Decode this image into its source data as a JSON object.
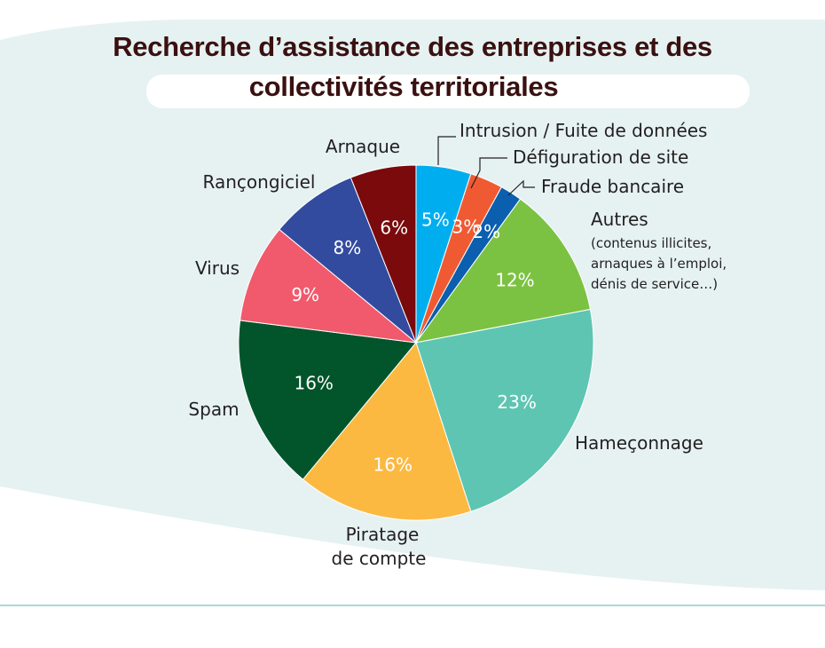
{
  "chart_data": {
    "type": "pie",
    "title_lines": [
      "Recherche d’assistance des entreprises et des",
      "collectivités territoriales"
    ],
    "slices": [
      {
        "label": "Intrusion / Fuite de données",
        "value": 5,
        "pct_label": "5%",
        "color": "#00aeef",
        "pct_color": "#ffffff"
      },
      {
        "label": "Défiguration de site",
        "value": 3,
        "pct_label": "3%",
        "color": "#f05a32",
        "pct_color": "#ffffff"
      },
      {
        "label": "Fraude bancaire",
        "value": 2,
        "pct_label": "2%",
        "color": "#0b5fae",
        "pct_color": "#ffffff"
      },
      {
        "label": "Autres",
        "sublabel_lines": [
          "(contenus illicites,",
          "arnaques à l’emploi,",
          "dénis de service…)"
        ],
        "value": 12,
        "pct_label": "12%",
        "color": "#7cc242",
        "pct_color": "#ffffff"
      },
      {
        "label": "Hameçonnage",
        "value": 23,
        "pct_label": "23%",
        "color": "#5ec5b2",
        "pct_color": "#ffffff"
      },
      {
        "label_lines": [
          "Piratage",
          "de compte"
        ],
        "value": 16,
        "pct_label": "16%",
        "color": "#fbb941",
        "pct_color": "#ffffff"
      },
      {
        "label": "Spam",
        "value": 16,
        "pct_label": "16%",
        "color": "#02552b",
        "pct_color": "#ffffff"
      },
      {
        "label": "Virus",
        "value": 9,
        "pct_label": "9%",
        "color": "#f15a6c",
        "pct_color": "#ffffff"
      },
      {
        "label": "Rançongiciel",
        "value": 8,
        "pct_label": "8%",
        "color": "#324b9f",
        "pct_color": "#ffffff"
      },
      {
        "label": "Arnaque",
        "value": 6,
        "pct_label": "6%",
        "color": "#7a0a0c",
        "pct_color": "#ffffff"
      }
    ],
    "background_color": "#e6f2f2",
    "rule_color": "#8fcdc5"
  }
}
